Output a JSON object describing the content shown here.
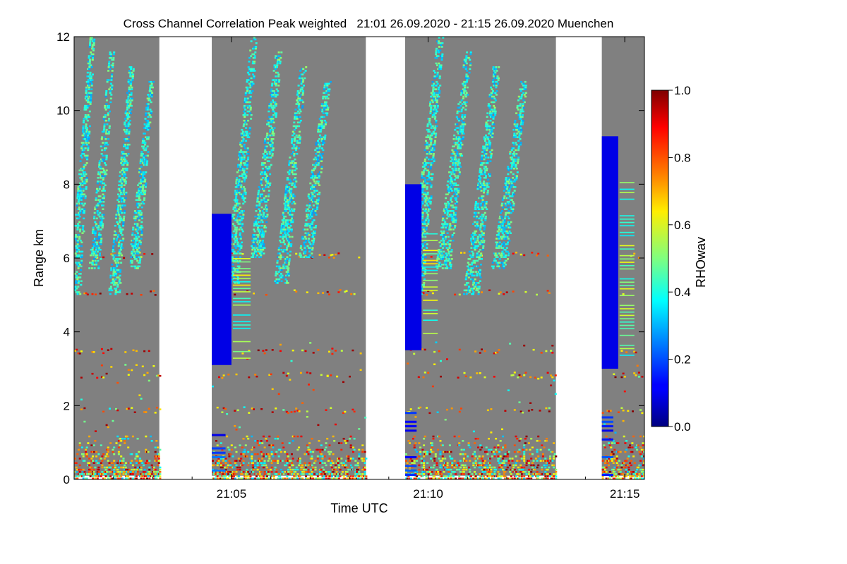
{
  "chart_data": {
    "type": "heatmap",
    "title": "Cross Channel Correlation Peak weighted   21:01 26.09.2020 - 21:15 26.09.2020 Muenchen",
    "xlabel": "Time UTC",
    "ylabel": "Range km",
    "x_range": [
      "21:01",
      "21:15:30"
    ],
    "y_range": [
      0,
      12
    ],
    "x_ticks": [
      "21:05",
      "21:10",
      "21:15"
    ],
    "y_ticks": [
      "0",
      "2",
      "4",
      "6",
      "8",
      "10",
      "12"
    ],
    "no_data_time_gaps": [
      [
        "21:03:10",
        "21:04:30"
      ],
      [
        "21:08:25",
        "21:09:25"
      ],
      [
        "21:13:15",
        "21:14:25"
      ]
    ],
    "background_value": "gray (below threshold)",
    "features": [
      {
        "kind": "near-range noise",
        "range_km": [
          0,
          1.2
        ],
        "value_range": [
          0.3,
          1.0
        ]
      },
      {
        "kind": "cirrus streaks",
        "time": [
          "21:01",
          "21:03"
        ],
        "range_km": [
          5,
          12
        ],
        "value": 0.4
      },
      {
        "kind": "cirrus streaks",
        "time": [
          "21:05",
          "21:07:30"
        ],
        "range_km": [
          5.3,
          12
        ],
        "value": 0.4
      },
      {
        "kind": "cirrus streaks",
        "time": [
          "21:09:40",
          "21:12:30"
        ],
        "range_km": [
          5,
          12
        ],
        "value": 0.4
      },
      {
        "kind": "low-correlation block",
        "time": [
          "21:04:30",
          "21:05"
        ],
        "range_km": [
          3.1,
          7.2
        ],
        "value": 0.1
      },
      {
        "kind": "low-correlation block",
        "time": [
          "21:09:25",
          "21:09:50"
        ],
        "range_km": [
          3.5,
          8.0
        ],
        "value": 0.1
      },
      {
        "kind": "low-correlation block",
        "time": [
          "21:14:25",
          "21:14:50"
        ],
        "range_km": [
          3.0,
          9.3
        ],
        "value": 0.1
      }
    ],
    "colorbar": {
      "label": "RHOwav",
      "range": [
        0.0,
        1.0
      ],
      "ticks": [
        "0.0",
        "0.2",
        "0.4",
        "0.6",
        "0.8",
        "1.0"
      ],
      "colormap": "jet"
    }
  }
}
